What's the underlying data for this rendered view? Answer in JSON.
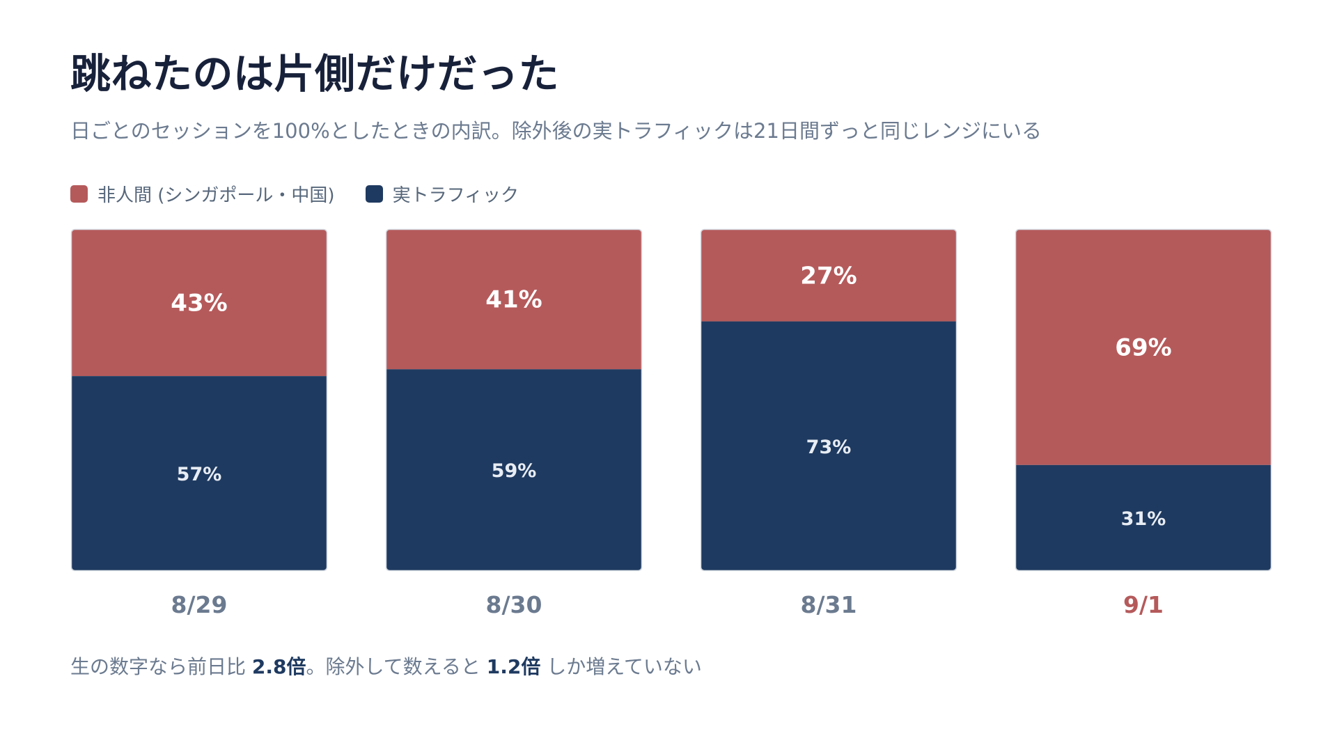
{
  "header": {
    "title": "跳ねたのは片側だけだった",
    "subtitle": "日ごとのセッションを100%としたときの内訳。除外後の実トラフィックは21日間ずっと同じレンジにいる"
  },
  "colors": {
    "bot": "#b55a5b",
    "human": "#1f3a60",
    "axis_label": "#6b7a8f",
    "highlight_label": "#b55a5b"
  },
  "chart_data": {
    "type": "bar",
    "stacked": true,
    "normalized_percent": true,
    "categories": [
      "8/29",
      "8/30",
      "8/31",
      "9/1"
    ],
    "highlight_category": "9/1",
    "ylim": [
      0,
      100
    ],
    "grid": false,
    "legend_position": "top-left",
    "series": [
      {
        "name": "実トラフィック",
        "values": [
          57,
          59,
          73,
          31
        ],
        "labels": [
          "57%",
          "59%",
          "73%",
          "31%"
        ]
      },
      {
        "name": "非人間 (シンガポール・中国)",
        "values": [
          43,
          41,
          27,
          69
        ],
        "labels": [
          "43%",
          "41%",
          "27%",
          "69%"
        ]
      }
    ]
  },
  "footnote": {
    "part1": "生の数字なら前日比 ",
    "value1": "2.8倍",
    "part2": "。除外して数えると ",
    "value2": "1.2倍",
    "part3": " しか増えていない"
  }
}
